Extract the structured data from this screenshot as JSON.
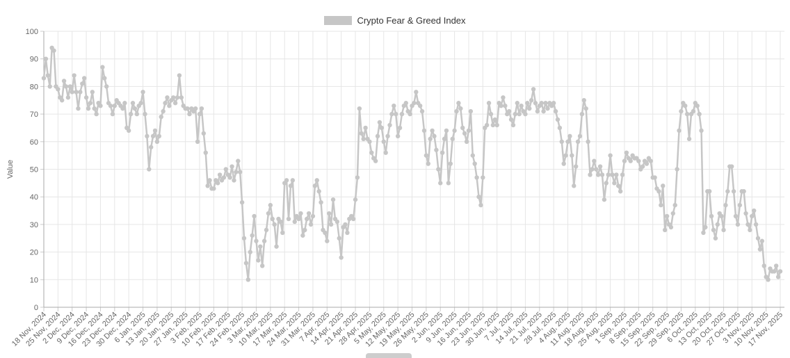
{
  "legend": {
    "label": "Crypto Fear & Greed Index",
    "swatch_color": "#c6c6c6"
  },
  "colors": {
    "series": "#c6c6c6",
    "grid": "#e6e6e6",
    "axis_line": "#aaaaaa",
    "tick_mark": "#cccccc",
    "tick_text": "#666666",
    "axis_title_text": "#666666",
    "legend_text": "#333333",
    "background": "#ffffff"
  },
  "chart_data": {
    "type": "line",
    "title": "",
    "xlabel": "",
    "ylabel": "Value",
    "ylim": [
      0,
      100
    ],
    "y_ticks": [
      0,
      10,
      20,
      30,
      40,
      50,
      60,
      70,
      80,
      90,
      100
    ],
    "grid": true,
    "legend_position": "top",
    "marker": "circle",
    "x_tick_interval_days": 7,
    "x_tick_labels": [
      "18 Nov, 2024",
      "25 Nov, 2024",
      "2 Dec, 2024",
      "9 Dec, 2024",
      "16 Dec, 2024",
      "23 Dec, 2024",
      "30 Dec, 2024",
      "6 Jan, 2025",
      "13 Jan, 2025",
      "20 Jan, 2025",
      "27 Jan, 2025",
      "3 Feb, 2025",
      "10 Feb, 2025",
      "17 Feb, 2025",
      "24 Feb, 2025",
      "3 Mar, 2025",
      "10 Mar, 2025",
      "17 Mar, 2025",
      "24 Mar, 2025",
      "31 Mar, 2025",
      "7 Apr, 2025",
      "14 Apr, 2025",
      "21 Apr, 2025",
      "28 Apr, 2025",
      "5 May, 2025",
      "12 May, 2025",
      "19 May, 2025",
      "26 May, 2025",
      "2 Jun, 2025",
      "9 Jun, 2025",
      "16 Jun, 2025",
      "23 Jun, 2025",
      "30 Jun, 2025",
      "7 Jul, 2025",
      "14 Jul, 2025",
      "21 Jul, 2025",
      "28 Jul, 2025",
      "4 Aug, 2025",
      "11 Aug, 2025",
      "18 Aug, 2025",
      "25 Aug, 2025",
      "1 Sep, 2025",
      "8 Sep, 2025",
      "15 Sep, 2025",
      "22 Sep, 2025",
      "29 Sep, 2025",
      "6 Oct, 2025",
      "13 Oct, 2025",
      "20 Oct, 2025",
      "27 Oct, 2025",
      "3 Nov, 2025",
      "10 Nov, 2025",
      "17 Nov, 2025"
    ],
    "series": [
      {
        "name": "Crypto Fear & Greed Index",
        "color": "#c6c6c6",
        "start_label": "18 Nov, 2024",
        "end_label": "17 Nov, 2025",
        "values": [
          83,
          90,
          84,
          80,
          94,
          93,
          80,
          79,
          76,
          75,
          82,
          80,
          76,
          80,
          78,
          84,
          78,
          72,
          78,
          81,
          83,
          76,
          72,
          74,
          78,
          72,
          70,
          74,
          73,
          87,
          83,
          80,
          74,
          73,
          70,
          73,
          75,
          74,
          73,
          72,
          74,
          65,
          64,
          70,
          74,
          72,
          70,
          73,
          74,
          78,
          70,
          62,
          50,
          58,
          62,
          64,
          60,
          62,
          69,
          71,
          74,
          76,
          73,
          75,
          76,
          74,
          76,
          84,
          76,
          73,
          72,
          72,
          70,
          72,
          71,
          72,
          60,
          70,
          72,
          63,
          56,
          44,
          46,
          43,
          43,
          46,
          45,
          48,
          46,
          47,
          50,
          48,
          47,
          51,
          46,
          49,
          53,
          49,
          38,
          25,
          16,
          10,
          20,
          26,
          33,
          24,
          17,
          22,
          15,
          24,
          28,
          34,
          37,
          32,
          30,
          22,
          32,
          31,
          27,
          45,
          46,
          32,
          44,
          46,
          31,
          33,
          32,
          34,
          26,
          28,
          32,
          34,
          30,
          33,
          44,
          46,
          42,
          38,
          28,
          27,
          24,
          34,
          30,
          39,
          32,
          31,
          25,
          18,
          29,
          30,
          27,
          32,
          33,
          32,
          39,
          47,
          72,
          63,
          61,
          65,
          61,
          60,
          56,
          54,
          53,
          62,
          67,
          65,
          60,
          56,
          62,
          66,
          70,
          73,
          70,
          62,
          65,
          70,
          73,
          74,
          71,
          70,
          73,
          74,
          78,
          74,
          73,
          71,
          64,
          55,
          52,
          61,
          64,
          62,
          57,
          50,
          45,
          56,
          61,
          64,
          45,
          52,
          61,
          64,
          71,
          74,
          72,
          65,
          63,
          60,
          64,
          71,
          55,
          52,
          47,
          40,
          37,
          47,
          65,
          66,
          74,
          70,
          66,
          68,
          66,
          74,
          73,
          76,
          73,
          70,
          71,
          68,
          66,
          70,
          74,
          70,
          73,
          71,
          70,
          74,
          72,
          75,
          79,
          74,
          71,
          73,
          74,
          71,
          74,
          72,
          74,
          73,
          74,
          71,
          68,
          65,
          60,
          52,
          55,
          60,
          62,
          55,
          44,
          51,
          60,
          62,
          70,
          75,
          72,
          60,
          48,
          50,
          53,
          50,
          48,
          51,
          48,
          39,
          45,
          48,
          55,
          48,
          45,
          48,
          44,
          42,
          48,
          53,
          56,
          54,
          53,
          55,
          54,
          54,
          53,
          50,
          51,
          53,
          52,
          54,
          53,
          47,
          47,
          43,
          42,
          37,
          44,
          28,
          33,
          30,
          29,
          34,
          37,
          50,
          64,
          71,
          74,
          73,
          70,
          61,
          70,
          71,
          74,
          73,
          70,
          64,
          27,
          29,
          42,
          42,
          33,
          28,
          25,
          30,
          34,
          33,
          28,
          37,
          42,
          51,
          51,
          42,
          33,
          30,
          37,
          42,
          42,
          34,
          30,
          28,
          33,
          35,
          30,
          25,
          21,
          24,
          15,
          11,
          10,
          14,
          13,
          13,
          15,
          11,
          13
        ]
      }
    ]
  }
}
